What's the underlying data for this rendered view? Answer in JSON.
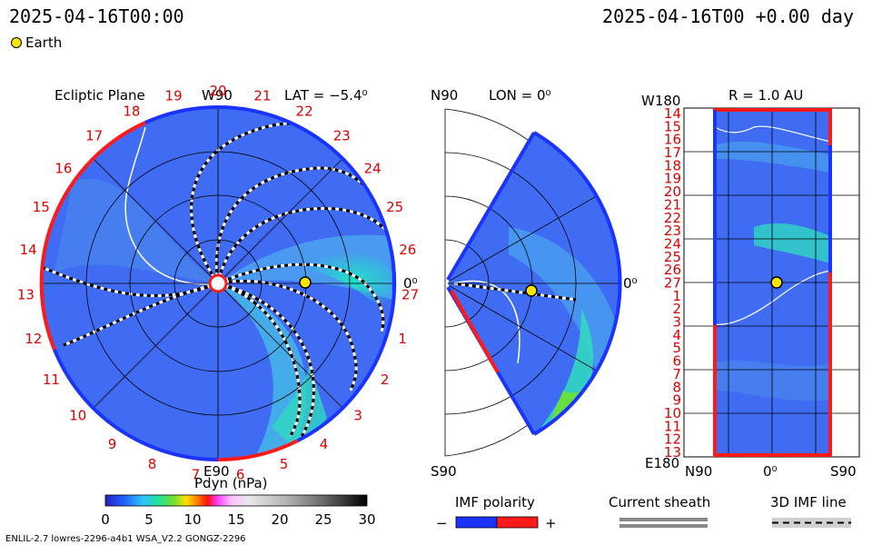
{
  "header": {
    "timestamp_left": "2025-04-16T00:00",
    "timestamp_right": "2025-04-16T00 +0.00 day"
  },
  "legend": {
    "earth_label": "Earth"
  },
  "panels": {
    "ecliptic": {
      "title": "Ecliptic Plane",
      "lat_label": "LAT = −5.4⁰",
      "top_label": "W90",
      "bottom_label": "E90",
      "right_label": "0⁰",
      "sector_numbers": [
        "20",
        "21",
        "22",
        "23",
        "24",
        "25",
        "26",
        "27",
        "1",
        "2",
        "3",
        "4",
        "5",
        "6",
        "7",
        "8",
        "9",
        "10",
        "11",
        "12",
        "13",
        "14",
        "15",
        "16",
        "17",
        "18",
        "19"
      ]
    },
    "meridional": {
      "top_label": "N90",
      "lon_label": "LON = 0⁰",
      "right_label": "0⁰",
      "bottom_label": "S90"
    },
    "map": {
      "top_left_label": "W180",
      "title": "R = 1.0 AU",
      "bottom_left_label": "E180",
      "y_ticks": [
        "14",
        "15",
        "16",
        "17",
        "18",
        "19",
        "20",
        "21",
        "22",
        "23",
        "24",
        "25",
        "26",
        "27",
        "1",
        "2",
        "3",
        "4",
        "5",
        "6",
        "7",
        "8",
        "9",
        "10",
        "11",
        "12",
        "13"
      ],
      "x_ticks": [
        "N90",
        "0⁰",
        "S90"
      ]
    }
  },
  "colorbar": {
    "title": "Pdyn (nPa)",
    "ticks": [
      "0",
      "5",
      "10",
      "15",
      "20",
      "25",
      "30"
    ],
    "range": [
      0,
      30
    ]
  },
  "keys": {
    "imf_polarity": {
      "title": "IMF polarity",
      "minus": "−",
      "plus": "+"
    },
    "current_sheath": {
      "title": "Current sheath"
    },
    "imf_line": {
      "title": "3D IMF line"
    }
  },
  "footer": {
    "left": "ENLIL-2.7 lowres-2296-a4b1 WSA_V2.2 GONGZ-2296"
  },
  "colors": {
    "sector_positive": "#ff1a1a",
    "sector_negative": "#1a33ff",
    "earth": "#ffe600",
    "tick_label": "#e00000"
  }
}
